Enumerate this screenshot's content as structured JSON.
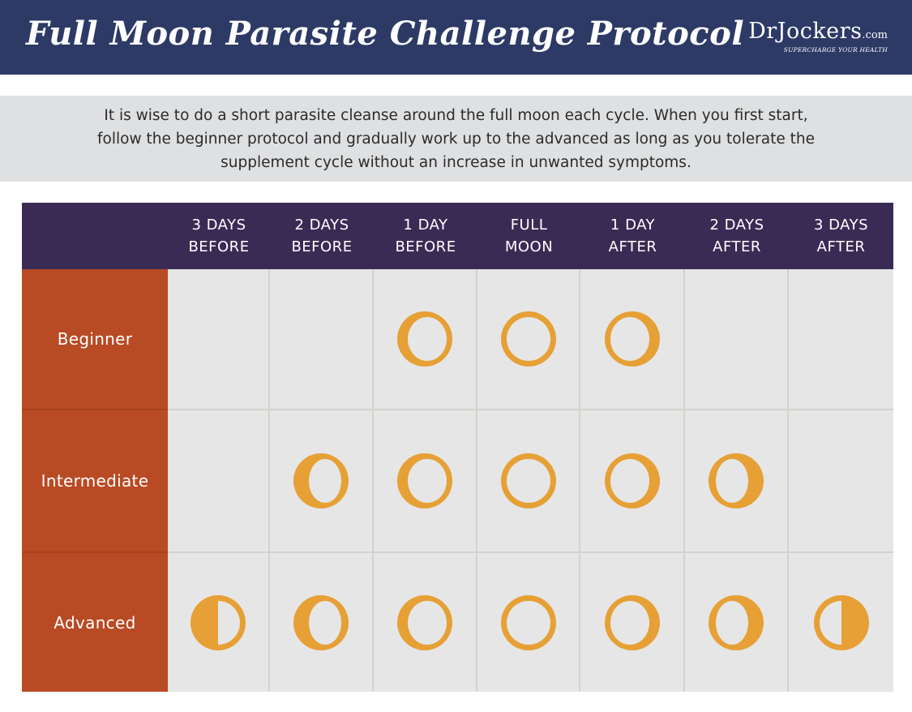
{
  "header": {
    "title": "Full Moon Parasite Challenge Protocol",
    "logo_main": "DrJockers",
    "logo_com": ".com",
    "logo_tagline": "SUPERCHARGE YOUR HEALTH",
    "background_color": "#2d3a66"
  },
  "intro": {
    "text": "It is wise to do a short parasite cleanse around the full moon each cycle. When you first start, follow the beginner protocol and gradually work up to the advanced as long as you tolerate the supplement cycle without an increase in unwanted symptoms."
  },
  "table": {
    "columns": [
      {
        "line1": "3 DAYS",
        "line2": "BEFORE"
      },
      {
        "line1": "2 DAYS",
        "line2": "BEFORE"
      },
      {
        "line1": "1 DAY",
        "line2": "BEFORE"
      },
      {
        "line1": "FULL",
        "line2": "MOON"
      },
      {
        "line1": "1 DAY",
        "line2": "AFTER"
      },
      {
        "line1": "2 DAYS",
        "line2": "AFTER"
      },
      {
        "line1": "3 DAYS",
        "line2": "AFTER"
      }
    ],
    "rows": [
      {
        "label": "Beginner",
        "cells": [
          "none",
          "none",
          "waxing-gibbous",
          "full",
          "waning-gibbous",
          "none",
          "none"
        ]
      },
      {
        "label": "Intermediate",
        "cells": [
          "none",
          "waxing-half-gibbous",
          "waxing-gibbous",
          "full",
          "waning-gibbous",
          "waning-half-gibbous",
          "none"
        ]
      },
      {
        "label": "Advanced",
        "cells": [
          "waxing-half",
          "waxing-half-gibbous",
          "waxing-gibbous",
          "full",
          "waning-gibbous",
          "waning-half-gibbous",
          "waning-half"
        ]
      }
    ],
    "colors": {
      "header_bg": "#3a2b55",
      "label_bg": "#b84a24",
      "cell_bg": "#e6e6e6",
      "moon": "#e6a035"
    }
  }
}
